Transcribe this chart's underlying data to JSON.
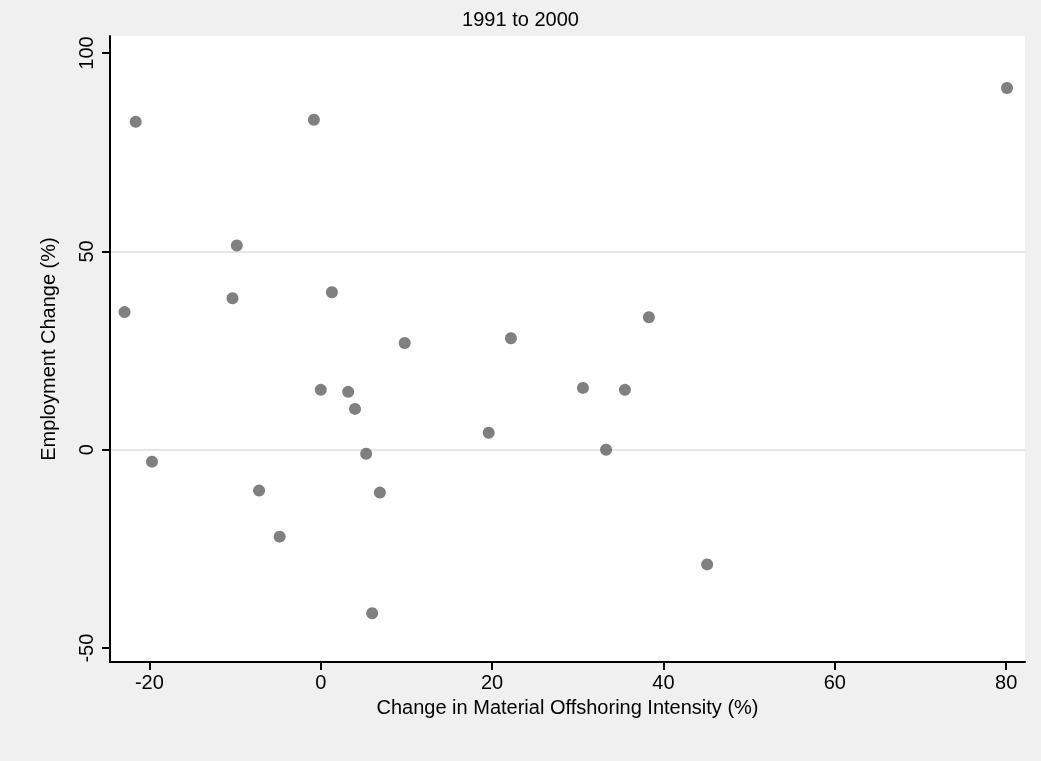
{
  "chart_data": {
    "type": "scatter",
    "title": "1991 to 2000",
    "xlabel": "Change in Material Offshoring Intensity (%)",
    "ylabel": "Employment Change (%)",
    "x": [
      -21.6,
      -0.8,
      -9.8,
      -22.9,
      -10.3,
      1.3,
      9.8,
      0,
      3.2,
      4.0,
      5.3,
      -19.7,
      -7.2,
      6.9,
      -4.8,
      6.0,
      19.6,
      22.2,
      30.6,
      35.5,
      33.3,
      38.3,
      45.1,
      80.1
    ],
    "values": [
      82.7,
      83.2,
      51.5,
      34.7,
      38.2,
      39.7,
      26.9,
      15.1,
      14.6,
      10.3,
      -1.0,
      -3.0,
      -10.3,
      -10.8,
      -21.9,
      -41.2,
      4.3,
      28.1,
      15.6,
      15.1,
      0,
      33.4,
      -28.9,
      91.2
    ],
    "color": "#606060",
    "marker": "circle",
    "xlim": [
      -24.6,
      82.2
    ],
    "xticks": [
      -20,
      0,
      20,
      40,
      60,
      80
    ],
    "ylim": [
      -53.5,
      104.3
    ],
    "yticks": [
      -50,
      0,
      50,
      100
    ],
    "grid": "y"
  }
}
